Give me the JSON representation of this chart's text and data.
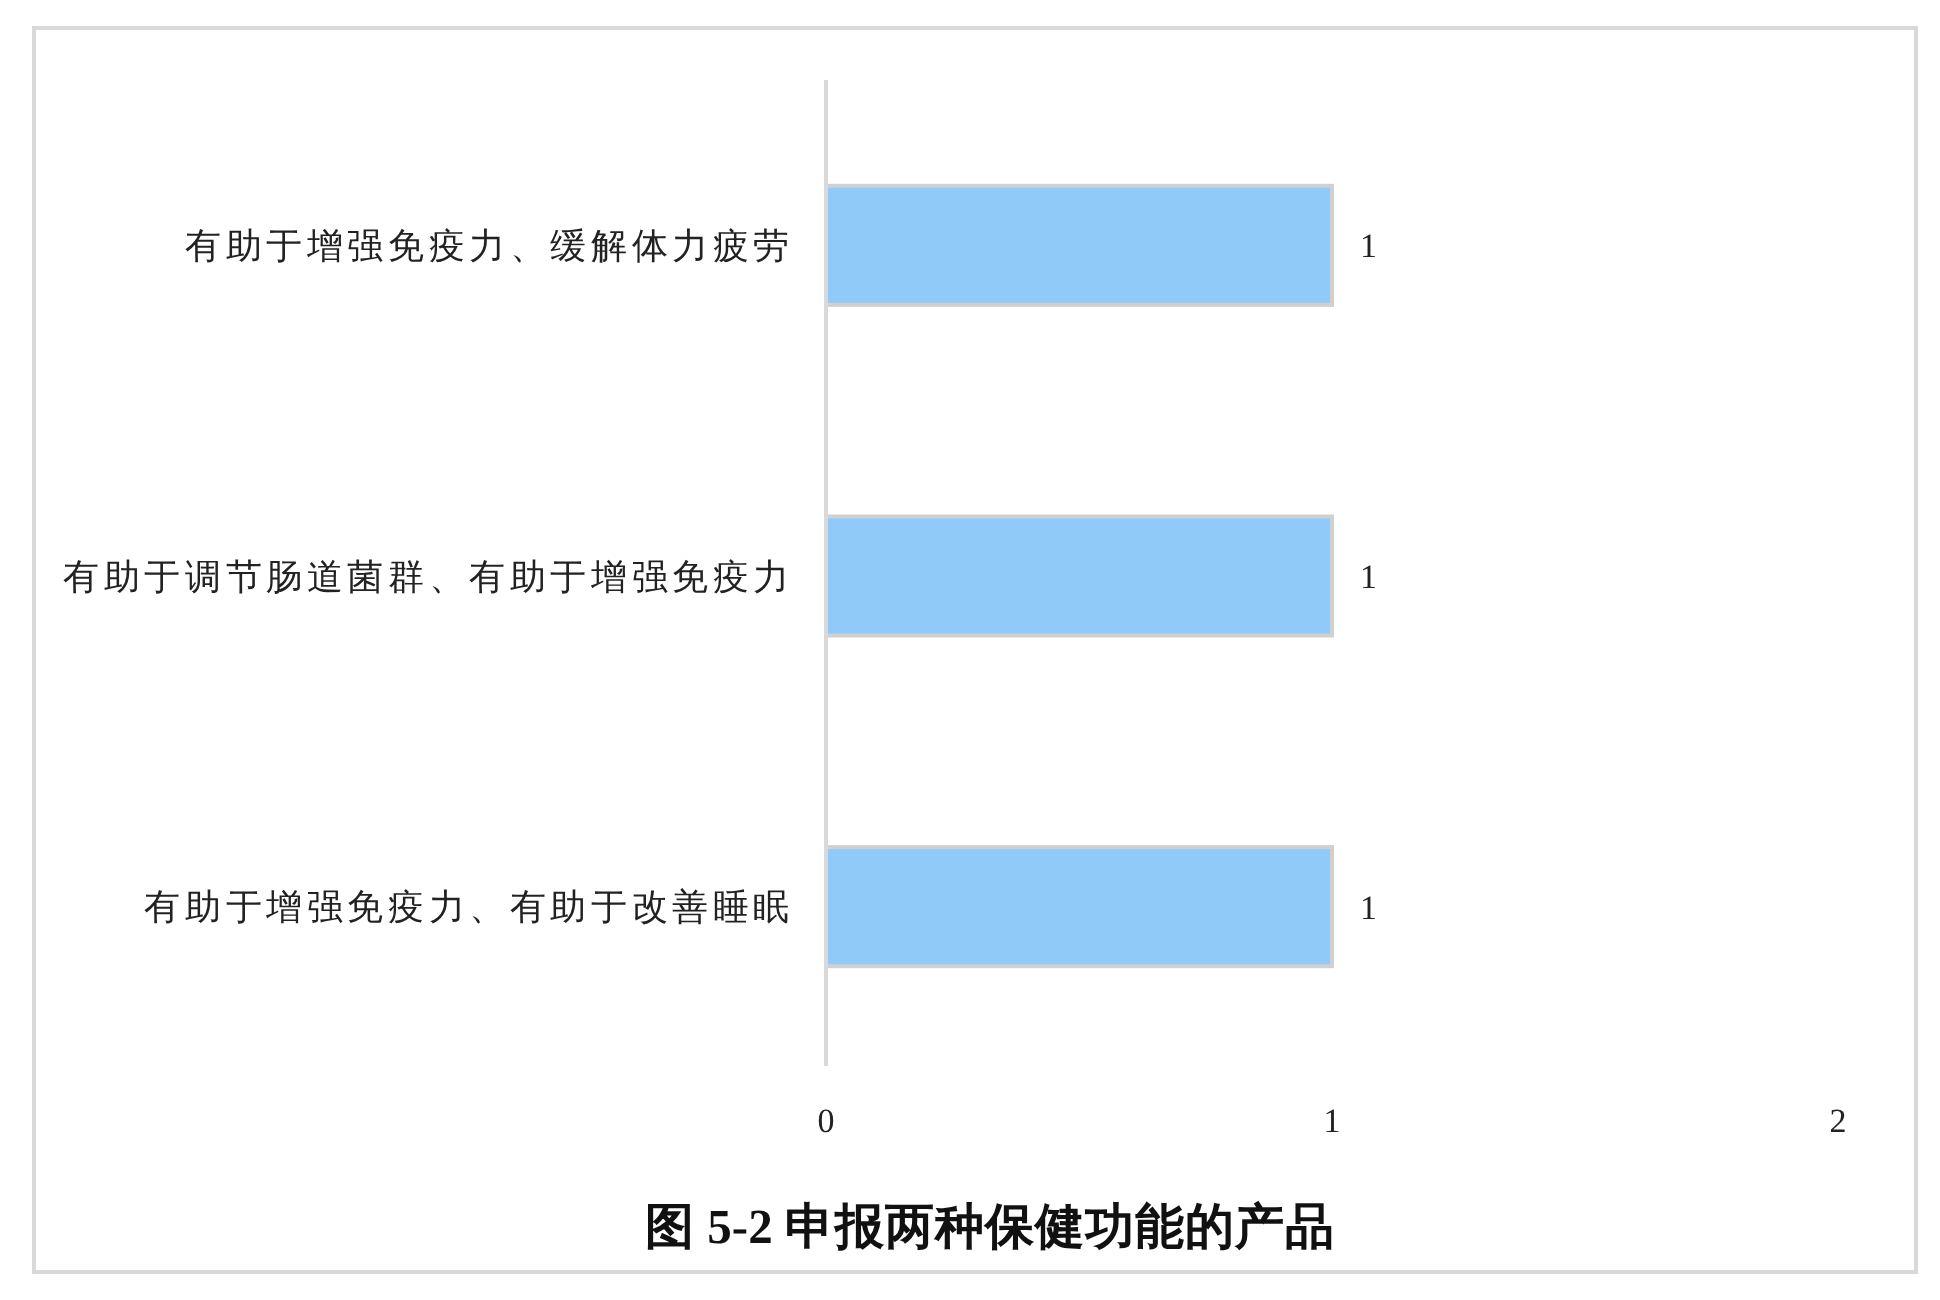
{
  "chart_data": {
    "type": "bar",
    "orientation": "horizontal",
    "title": "图 5-2 申报两种保健功能的产品",
    "categories": [
      "有助于增强免疫力、缓解体力疲劳",
      "有助于调节肠道菌群、有助于增强免疫力",
      "有助于增强免疫力、有助于改善睡眠"
    ],
    "values": [
      1,
      1,
      1
    ],
    "color": "#90caf9",
    "xlim": [
      0,
      2
    ],
    "xticks": [
      0,
      1,
      2
    ],
    "data_labels": true
  }
}
